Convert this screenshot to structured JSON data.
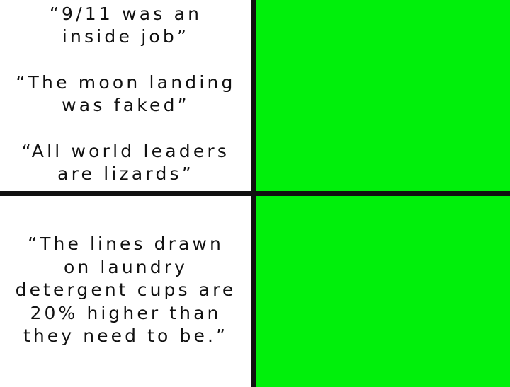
{
  "panels": {
    "top_left": {
      "quotes": [
        "“9/11 was an\ninside job”",
        "“The moon landing\nwas faked”",
        "“All world leaders\nare lizards”"
      ]
    },
    "top_right": {
      "fill_color": "#00f00b"
    },
    "bottom_left": {
      "quote": "“The lines drawn\non laundry\ndetergent cups are\n20% higher than\nthey need to be.”"
    },
    "bottom_right": {
      "fill_color": "#00f00b"
    }
  },
  "colors": {
    "divider": "#111111",
    "text": "#111111",
    "panel_background": "#ffffff",
    "green_screen": "#00f00b"
  }
}
